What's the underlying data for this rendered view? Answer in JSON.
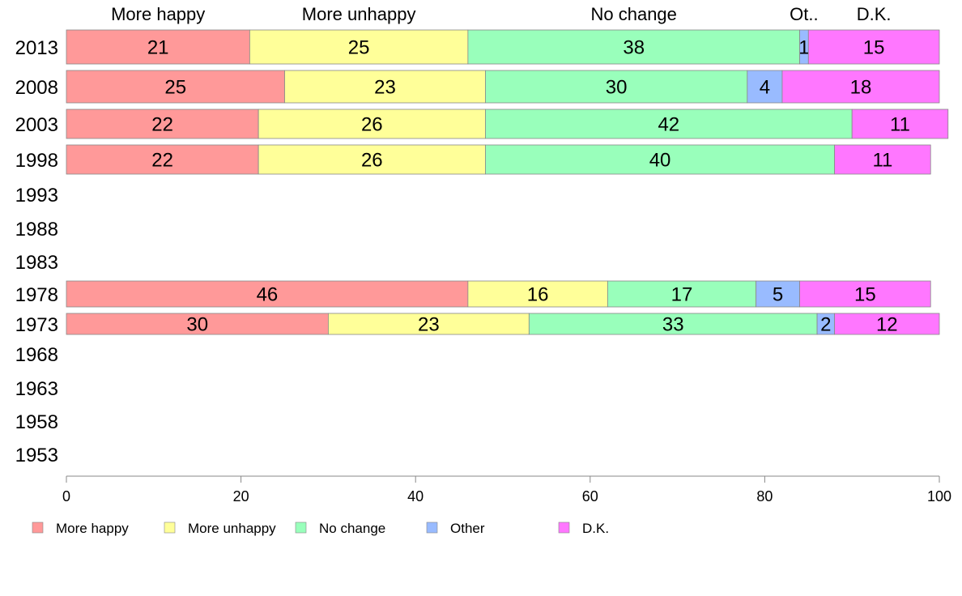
{
  "chart_data": {
    "type": "bar",
    "orientation": "horizontal-stacked-100",
    "header_labels": [
      "More happy",
      "More unhappy",
      "No change",
      "Ot..",
      "D.K."
    ],
    "series_names": [
      "More happy",
      "More unhappy",
      "No change",
      "Other",
      "D.K."
    ],
    "colors": [
      "#ff9999",
      "#ffff99",
      "#99ffbb",
      "#99bbff",
      "#ff77ff"
    ],
    "years": [
      "2013",
      "2008",
      "2003",
      "1998",
      "1993",
      "1988",
      "1983",
      "1978",
      "1973",
      "1968",
      "1963",
      "1958",
      "1953"
    ],
    "rows": [
      {
        "year": "2013",
        "values": [
          21,
          25,
          38,
          1,
          15
        ],
        "labels": [
          "21",
          "25",
          "38",
          "1",
          "15"
        ]
      },
      {
        "year": "2008",
        "values": [
          25,
          23,
          30,
          4,
          18
        ],
        "labels": [
          "25",
          "23",
          "30",
          "4",
          "18"
        ]
      },
      {
        "year": "2003",
        "values": [
          22,
          26,
          42,
          0,
          11
        ],
        "labels": [
          "22",
          "26",
          "42",
          "",
          "11"
        ]
      },
      {
        "year": "1998",
        "values": [
          22,
          26,
          40,
          0,
          11
        ],
        "labels": [
          "22",
          "26",
          "40",
          "",
          "11"
        ]
      },
      {
        "year": "1993",
        "values": null
      },
      {
        "year": "1988",
        "values": null
      },
      {
        "year": "1983",
        "values": null
      },
      {
        "year": "1978",
        "values": [
          46,
          16,
          17,
          5,
          15
        ],
        "labels": [
          "46",
          "16",
          "17",
          "5",
          "15"
        ]
      },
      {
        "year": "1973",
        "values": [
          30,
          23,
          33,
          2,
          12
        ],
        "labels": [
          "30",
          "23",
          "33",
          "2",
          "12"
        ]
      },
      {
        "year": "1968",
        "values": null
      },
      {
        "year": "1963",
        "values": null
      },
      {
        "year": "1958",
        "values": null
      },
      {
        "year": "1953",
        "values": null
      }
    ],
    "xlim": [
      0,
      100
    ],
    "xticks": [
      0,
      20,
      40,
      60,
      80,
      100
    ],
    "legend_position": "bottom-left",
    "grid": false
  }
}
